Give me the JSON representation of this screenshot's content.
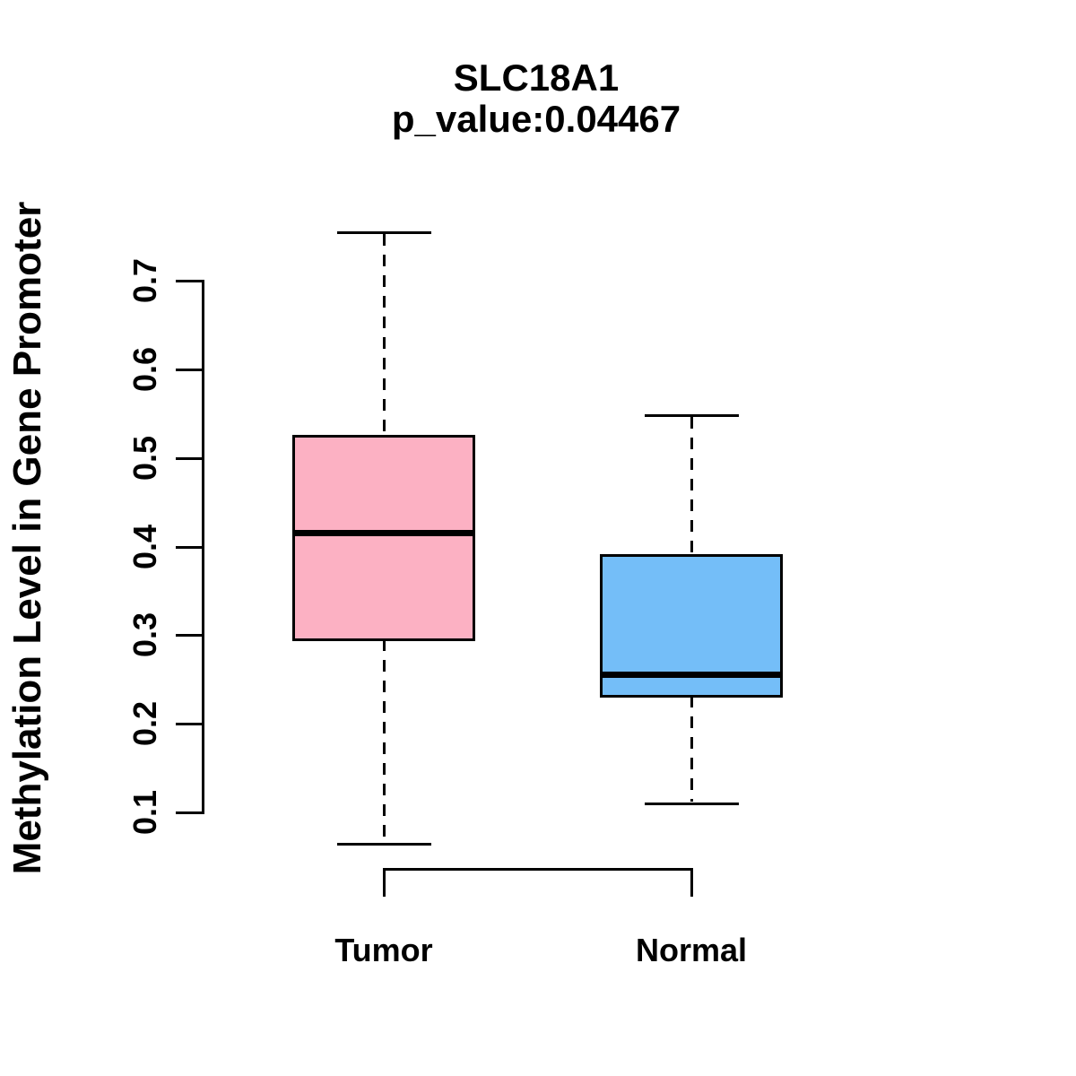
{
  "page": {
    "background": "#ffffff",
    "ink_color": "#000000"
  },
  "chart_data": {
    "type": "boxplot",
    "title": "SLC18A1",
    "subtitle": "p_value:0.04467",
    "ylabel": "Methylation Level in Gene Promoter",
    "xlabel": "",
    "yticks": [
      0.1,
      0.2,
      0.3,
      0.4,
      0.5,
      0.6,
      0.7
    ],
    "ytick_labels": [
      "0.1",
      "0.2",
      "0.3",
      "0.4",
      "0.5",
      "0.6",
      "0.7"
    ],
    "ylim": [
      0.1,
      0.7
    ],
    "grid": false,
    "legend_position": "none",
    "whisker_line_style": "dashed",
    "categories": [
      "Tumor",
      "Normal"
    ],
    "groups": [
      {
        "label": "Tumor",
        "fill": "#FCB1C3",
        "whisker_low": 0.065,
        "q1": 0.295,
        "median": 0.415,
        "q3": 0.525,
        "whisker_high": 0.755
      },
      {
        "label": "Normal",
        "fill": "#74BEF8",
        "whisker_low": 0.11,
        "q1": 0.232,
        "median": 0.255,
        "q3": 0.39,
        "whisker_high": 0.548
      }
    ]
  }
}
